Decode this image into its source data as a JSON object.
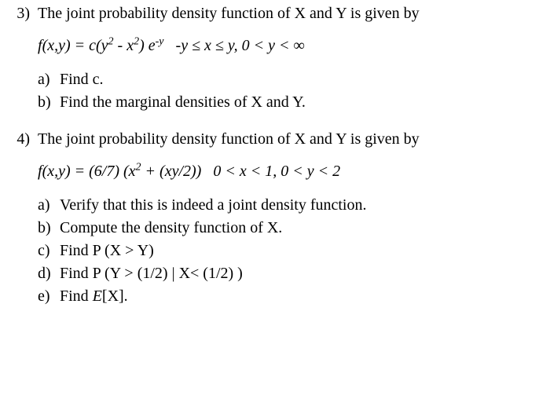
{
  "font_family": "Times New Roman",
  "base_fontsize_pt": 15,
  "text_color": "#000000",
  "background_color": "#ffffff",
  "problems": [
    {
      "number": "3)",
      "stem": "The joint probability density function of X and Y is given by",
      "formula_html": "<i>f</i>(x,y) = c(y<span class=\"sup\">2</span> - x<span class=\"sup\">2</span>) e<span class=\"sup\">-y</span>&nbsp;&nbsp;&nbsp;-y ≤ x ≤ y, 0 &lt; y &lt; ∞",
      "parts": [
        {
          "label": "a)",
          "text": "Find c."
        },
        {
          "label": "b)",
          "text": "Find the marginal densities of  X and Y."
        }
      ]
    },
    {
      "number": "4)",
      "stem": "The joint probability density function of X and Y is given by",
      "formula_html": "<i>f</i>(x,y) = (6/7) (x<span class=\"sup\">2</span> + (xy/2))&nbsp;&nbsp; 0 &lt; x &lt; 1, 0 &lt; y &lt; 2",
      "parts": [
        {
          "label": "a)",
          "text": "Verify that this is indeed a joint density function."
        },
        {
          "label": "b)",
          "text": "Compute the density function of X."
        },
        {
          "label": "c)",
          "text": "Find P (X > Y)"
        },
        {
          "label": "d)",
          "text": "Find P (Y > (1/2) | X< (1/2) )"
        },
        {
          "label": "e)",
          "text_html": "Find <i>E</i>[X]."
        }
      ]
    }
  ]
}
